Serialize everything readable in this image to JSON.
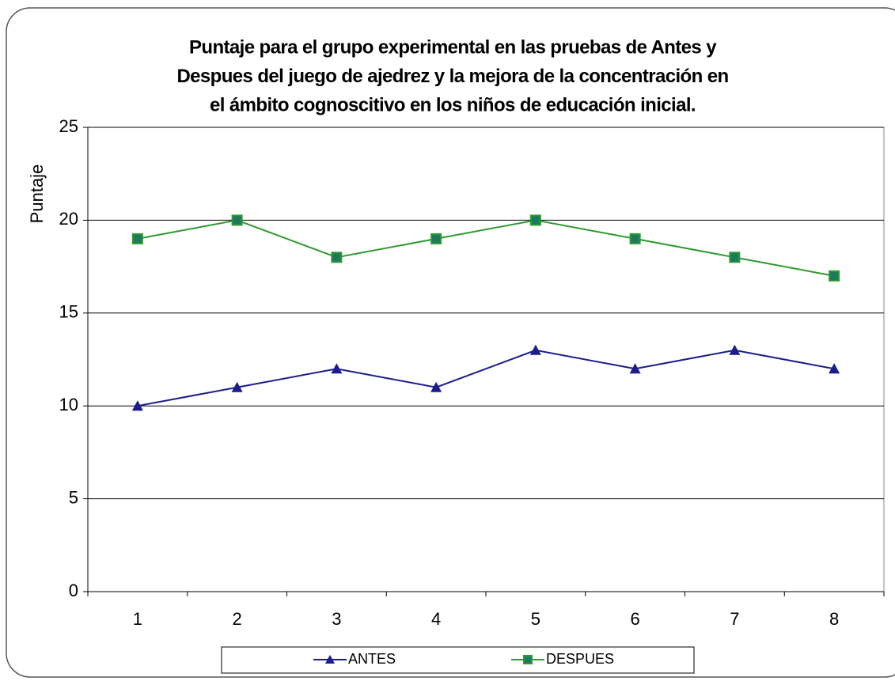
{
  "chart_data": {
    "type": "line",
    "title": [
      "Puntaje para el grupo experimental en las pruebas de Antes y",
      "Despues del juego de ajedrez y la mejora de la concentración en",
      "el ámbito cognoscitivo en los niños de educación inicial."
    ],
    "y_label": "Puntaje",
    "categories": [
      "1",
      "2",
      "3",
      "4",
      "5",
      "6",
      "7",
      "8"
    ],
    "series": [
      {
        "name": "ANTES",
        "color": "#1c1c8c",
        "marker": "triangle",
        "values": [
          10,
          11,
          12,
          11,
          13,
          12,
          13,
          12
        ]
      },
      {
        "name": "DESPUES",
        "color": "#2f9a2f",
        "marker": "square",
        "values": [
          19,
          20,
          18,
          19,
          20,
          19,
          18,
          17
        ]
      }
    ],
    "ylim": [
      0,
      25
    ],
    "yticks": [
      0,
      5,
      10,
      15,
      20,
      25
    ],
    "grid": true,
    "legend": "bottom"
  }
}
